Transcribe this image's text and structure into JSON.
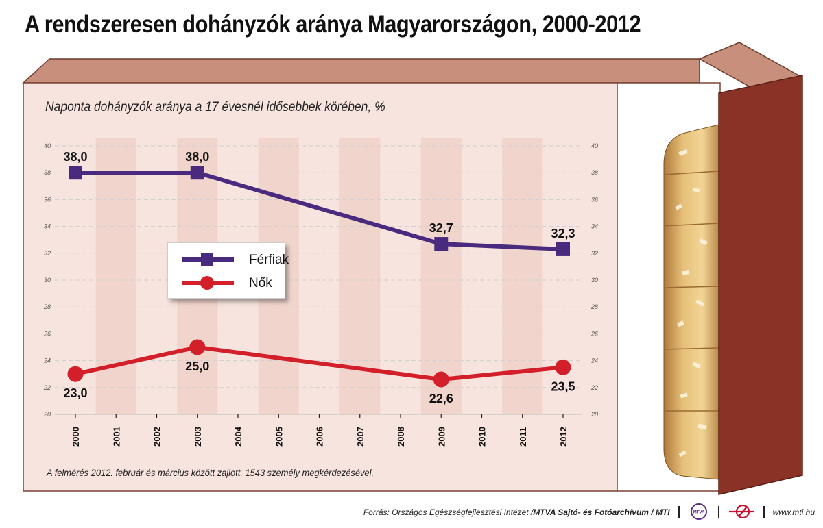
{
  "title": "A rendszeresen dohányzók aránya Magyarországon, 2000-2012",
  "subtitle": "Naponta dohányzók aránya a 17 évesnél idősebbek körében, %",
  "note": "A felmérés 2012. február és március között zajlott, 1543 személy megkérdezésével.",
  "footer": {
    "source": "Forrás: Országos Egészségfejlesztési Intézet / ",
    "archive": "MTVA Sajtó- és Fotóarchívum / MTI",
    "logo1": "MTVA",
    "website": "www.mti.hu"
  },
  "colors": {
    "male": "#4a2a7e",
    "female": "#d21f2a",
    "panel": "#f7e4de",
    "panel_stripe": "#f1d5cc",
    "box_top": "#c8907c",
    "box_side": "#8a3226"
  },
  "chart_data": {
    "type": "line",
    "categories": [
      "2000",
      "2001",
      "2002",
      "2003",
      "2004",
      "2005",
      "2006",
      "2007",
      "2008",
      "2009",
      "2010",
      "2011",
      "2012"
    ],
    "ylim": [
      20,
      40
    ],
    "yticks": [
      "20",
      "22",
      "24",
      "26",
      "28",
      "30",
      "32",
      "34",
      "36",
      "38",
      "40"
    ],
    "series": [
      {
        "name": "Férfiak",
        "marker": "square",
        "points": [
          {
            "x": "2000",
            "y": 38.0,
            "label": "38,0"
          },
          {
            "x": "2003",
            "y": 38.0,
            "label": "38,0"
          },
          {
            "x": "2009",
            "y": 32.7,
            "label": "32,7"
          },
          {
            "x": "2012",
            "y": 32.3,
            "label": "32,3"
          }
        ]
      },
      {
        "name": "Nők",
        "marker": "circle",
        "points": [
          {
            "x": "2000",
            "y": 23.0,
            "label": "23,0"
          },
          {
            "x": "2003",
            "y": 25.0,
            "label": "25,0"
          },
          {
            "x": "2009",
            "y": 22.6,
            "label": "22,6"
          },
          {
            "x": "2012",
            "y": 23.5,
            "label": "23,5"
          }
        ]
      }
    ]
  }
}
